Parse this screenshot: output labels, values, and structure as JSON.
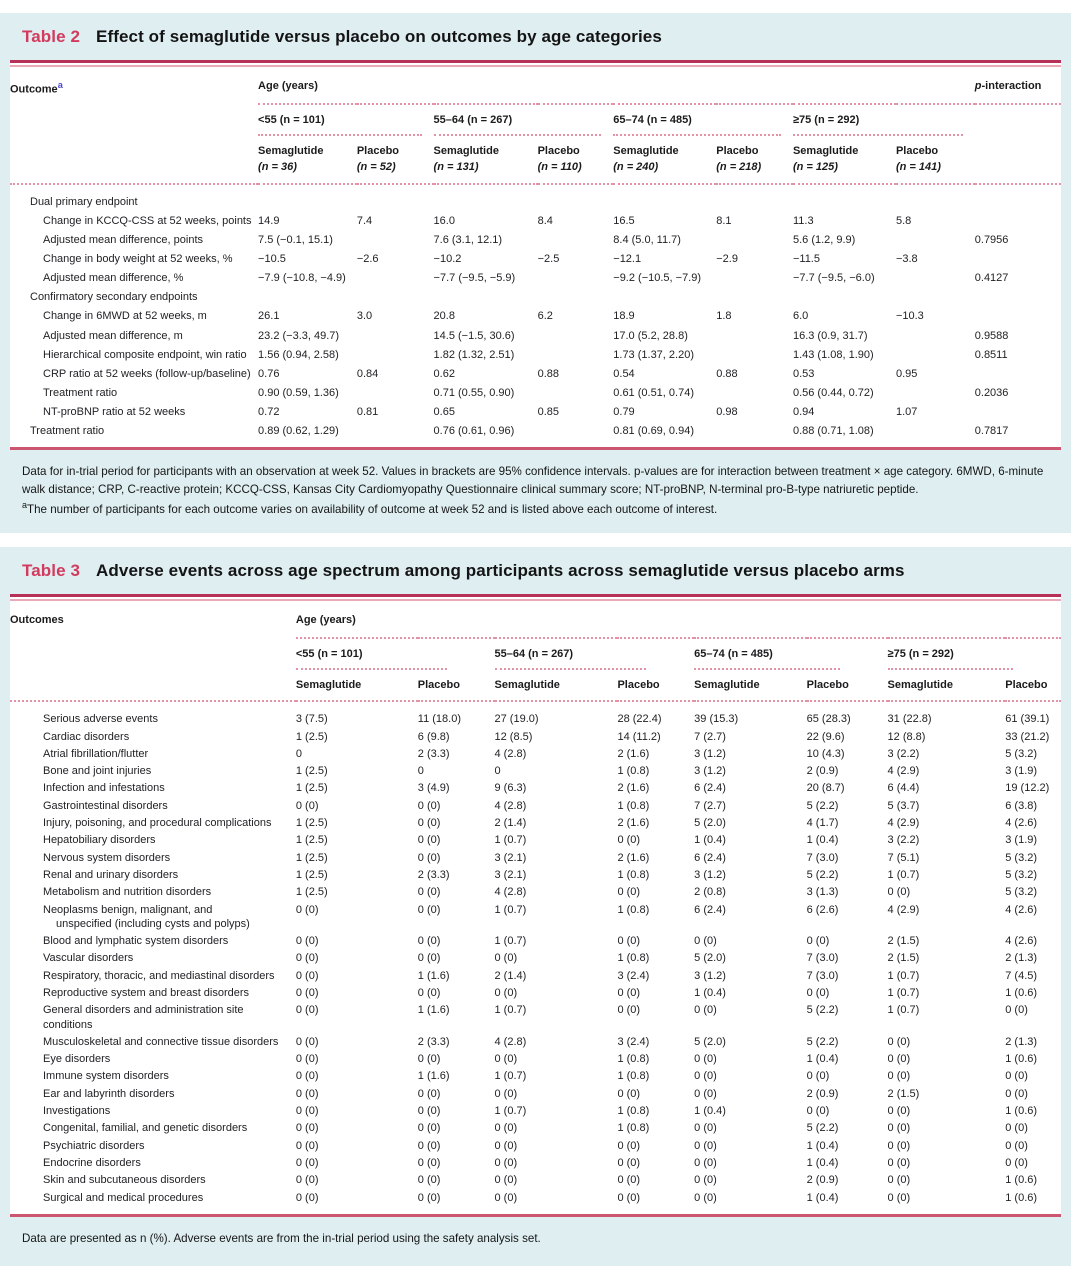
{
  "colors": {
    "panel_bg": "#dfeef1",
    "accent_red": "#d23a5e",
    "rule_dark": "#b73058",
    "rule_pink": "#eba8b6",
    "dotted_pink": "#e492a6",
    "sup_blue": "#4a44d6"
  },
  "table2": {
    "label": "Table 2",
    "title": "Effect of semaglutide versus placebo on outcomes by age categories",
    "header": {
      "outcome": "Outcome",
      "outcome_sup": "a",
      "age_years": "Age (years)",
      "p_it": "p",
      "p_rest": "-interaction",
      "groups": [
        {
          "label": "<55 (n = 101)",
          "sema": "Semaglutide",
          "sema_n": "(n = 36)",
          "placebo": "Placebo",
          "placebo_n": "(n = 52)"
        },
        {
          "label": "55–64 (n = 267)",
          "sema": "Semaglutide",
          "sema_n": "(n = 131)",
          "placebo": "Placebo",
          "placebo_n": "(n = 110)"
        },
        {
          "label": "65–74 (n = 485)",
          "sema": "Semaglutide",
          "sema_n": "(n = 240)",
          "placebo": "Placebo",
          "placebo_n": "(n = 218)"
        },
        {
          "label": "≥75 (n = 292)",
          "sema": "Semaglutide",
          "sema_n": "(n = 125)",
          "placebo": "Placebo",
          "placebo_n": "(n = 141)"
        }
      ]
    },
    "rows": [
      {
        "label": "Dual primary endpoint",
        "section": true,
        "cells": [],
        "p": ""
      },
      {
        "label": "Change in KCCQ-CSS at 52 weeks, points",
        "ind": true,
        "cells": [
          "14.9",
          "7.4",
          "16.0",
          "8.4",
          "16.5",
          "8.1",
          "11.3",
          "5.8"
        ],
        "p": ""
      },
      {
        "label": "Adjusted mean difference, points",
        "ind": true,
        "cells": [
          "7.5 (−0.1, 15.1)",
          "",
          "7.6 (3.1, 12.1)",
          "",
          "8.4 (5.0, 11.7)",
          "",
          "5.6 (1.2, 9.9)",
          ""
        ],
        "p": "0.7956"
      },
      {
        "label": "Change in body weight at 52 weeks, %",
        "ind": true,
        "cells": [
          "−10.5",
          "−2.6",
          "−10.2",
          "−2.5",
          "−12.1",
          "−2.9",
          "−11.5",
          "−3.8"
        ],
        "p": ""
      },
      {
        "label": "Adjusted mean difference, %",
        "ind": true,
        "cells": [
          "−7.9 (−10.8, −4.9)",
          "",
          "−7.7 (−9.5, −5.9)",
          "",
          "−9.2 (−10.5, −7.9)",
          "",
          "−7.7 (−9.5, −6.0)",
          ""
        ],
        "p": "0.4127"
      },
      {
        "label": "Confirmatory secondary endpoints",
        "section": true,
        "cells": [],
        "p": ""
      },
      {
        "label": "Change in 6MWD at 52 weeks, m",
        "ind": true,
        "cells": [
          "26.1",
          "3.0",
          "20.8",
          "6.2",
          "18.9",
          "1.8",
          "6.0",
          "−10.3"
        ],
        "p": ""
      },
      {
        "label": "Adjusted mean difference, m",
        "ind": true,
        "cells": [
          "23.2 (−3.3, 49.7)",
          "",
          "14.5 (−1.5, 30.6)",
          "",
          "17.0 (5.2, 28.8)",
          "",
          "16.3 (0.9, 31.7)",
          ""
        ],
        "p": "0.9588"
      },
      {
        "label": "Hierarchical composite endpoint, win ratio",
        "ind": true,
        "cells": [
          "1.56 (0.94, 2.58)",
          "",
          "1.82 (1.32, 2.51)",
          "",
          "1.73 (1.37, 2.20)",
          "",
          "1.43 (1.08, 1.90)",
          ""
        ],
        "p": "0.8511"
      },
      {
        "label": "CRP ratio at 52 weeks (follow-up/baseline)",
        "ind": true,
        "cells": [
          "0.76",
          "0.84",
          "0.62",
          "0.88",
          "0.54",
          "0.88",
          "0.53",
          "0.95"
        ],
        "p": ""
      },
      {
        "label": "Treatment ratio",
        "ind": true,
        "cells": [
          "0.90 (0.59, 1.36)",
          "",
          "0.71 (0.55, 0.90)",
          "",
          "0.61 (0.51, 0.74)",
          "",
          "0.56 (0.44, 0.72)",
          ""
        ],
        "p": "0.2036"
      },
      {
        "label": "NT-proBNP ratio at 52 weeks",
        "ind": true,
        "cells": [
          "0.72",
          "0.81",
          "0.65",
          "0.85",
          "0.79",
          "0.98",
          "0.94",
          "1.07"
        ],
        "p": ""
      },
      {
        "label": "Treatment ratio",
        "ind": false,
        "cells": [
          "0.89 (0.62, 1.29)",
          "",
          "0.76 (0.61, 0.96)",
          "",
          "0.81 (0.69, 0.94)",
          "",
          "0.88 (0.71, 1.08)",
          ""
        ],
        "p": "0.7817"
      }
    ],
    "footnote1": "Data for in-trial period for participants with an observation at week 52. Values in brackets are 95% confidence intervals. p-values are for interaction between treatment × age category. 6MWD, 6-minute walk distance; CRP, C-reactive protein; KCCQ-CSS, Kansas City Cardiomyopathy Questionnaire clinical summary score; NT-proBNP, N-terminal pro-B-type natriuretic peptide.",
    "footnote2_sup": "a",
    "footnote2": "The number of participants for each outcome varies on availability of outcome at week 52 and is listed above each outcome of interest."
  },
  "table3": {
    "label": "Table 3",
    "title": "Adverse events across age spectrum among participants across semaglutide versus placebo arms",
    "header": {
      "outcome": "Outcomes",
      "age_years": "Age (years)",
      "groups": [
        {
          "label": "<55 (n = 101)",
          "sema": "Semaglutide",
          "placebo": "Placebo"
        },
        {
          "label": "55–64 (n = 267)",
          "sema": "Semaglutide",
          "placebo": "Placebo"
        },
        {
          "label": "65–74 (n = 485)",
          "sema": "Semaglutide",
          "placebo": "Placebo"
        },
        {
          "label": "≥75 (n = 292)",
          "sema": "Semaglutide",
          "placebo": "Placebo"
        }
      ]
    },
    "rows": [
      {
        "label": "Serious adverse events",
        "ind": true,
        "cells": [
          "3 (7.5)",
          "11 (18.0)",
          "27 (19.0)",
          "28 (22.4)",
          "39 (15.3)",
          "65 (28.3)",
          "31 (22.8)",
          "61 (39.1)"
        ]
      },
      {
        "label": "Cardiac disorders",
        "ind": true,
        "cells": [
          "1 (2.5)",
          "6 (9.8)",
          "12 (8.5)",
          "14 (11.2)",
          "7 (2.7)",
          "22 (9.6)",
          "12 (8.8)",
          "33 (21.2)"
        ]
      },
      {
        "label": "Atrial fibrillation/flutter",
        "ind": true,
        "cells": [
          "0",
          "2 (3.3)",
          "4 (2.8)",
          "2 (1.6)",
          "3 (1.2)",
          "10 (4.3)",
          "3 (2.2)",
          "5 (3.2)"
        ]
      },
      {
        "label": "Bone and joint injuries",
        "ind": true,
        "cells": [
          "1 (2.5)",
          "0",
          "0",
          "1 (0.8)",
          "3 (1.2)",
          "2 (0.9)",
          "4 (2.9)",
          "3 (1.9)"
        ]
      },
      {
        "label": "Infection and infestations",
        "ind": true,
        "cells": [
          "1 (2.5)",
          "3 (4.9)",
          "9 (6.3)",
          "2 (1.6)",
          "6 (2.4)",
          "20 (8.7)",
          "6 (4.4)",
          "19 (12.2)"
        ]
      },
      {
        "label": "Gastrointestinal disorders",
        "ind": true,
        "cells": [
          "0 (0)",
          "0 (0)",
          "4 (2.8)",
          "1 (0.8)",
          "7 (2.7)",
          "5 (2.2)",
          "5 (3.7)",
          "6 (3.8)"
        ]
      },
      {
        "label": "Injury, poisoning, and procedural complications",
        "ind": true,
        "cells": [
          "1 (2.5)",
          "0 (0)",
          "2 (1.4)",
          "2 (1.6)",
          "5 (2.0)",
          "4 (1.7)",
          "4 (2.9)",
          "4 (2.6)"
        ]
      },
      {
        "label": "Hepatobiliary disorders",
        "ind": true,
        "cells": [
          "1 (2.5)",
          "0 (0)",
          "1 (0.7)",
          "0 (0)",
          "1 (0.4)",
          "1 (0.4)",
          "3 (2.2)",
          "3 (1.9)"
        ]
      },
      {
        "label": "Nervous system disorders",
        "ind": true,
        "cells": [
          "1 (2.5)",
          "0 (0)",
          "3 (2.1)",
          "2 (1.6)",
          "6 (2.4)",
          "7 (3.0)",
          "7 (5.1)",
          "5 (3.2)"
        ]
      },
      {
        "label": "Renal and urinary disorders",
        "ind": true,
        "cells": [
          "1 (2.5)",
          "2 (3.3)",
          "3 (2.1)",
          "1 (0.8)",
          "3 (1.2)",
          "5 (2.2)",
          "1 (0.7)",
          "5 (3.2)"
        ]
      },
      {
        "label": "Metabolism and nutrition disorders",
        "ind": true,
        "cells": [
          "1 (2.5)",
          "0 (0)",
          "4 (2.8)",
          "0 (0)",
          "2 (0.8)",
          "3 (1.3)",
          "0 (0)",
          "5 (3.2)"
        ]
      },
      {
        "label": "Neoplasms benign, malignant, and",
        "label2": "unspecified (including cysts and polyps)",
        "ind": true,
        "cells": [
          "0 (0)",
          "0 (0)",
          "1 (0.7)",
          "1 (0.8)",
          "6 (2.4)",
          "6 (2.6)",
          "4 (2.9)",
          "4 (2.6)"
        ]
      },
      {
        "label": "Blood and lymphatic system disorders",
        "ind": true,
        "cells": [
          "0 (0)",
          "0 (0)",
          "1 (0.7)",
          "0 (0)",
          "0 (0)",
          "0 (0)",
          "2 (1.5)",
          "4 (2.6)"
        ]
      },
      {
        "label": "Vascular disorders",
        "ind": true,
        "cells": [
          "0 (0)",
          "0 (0)",
          "0 (0)",
          "1 (0.8)",
          "5 (2.0)",
          "7 (3.0)",
          "2 (1.5)",
          "2 (1.3)"
        ]
      },
      {
        "label": "Respiratory, thoracic, and mediastinal disorders",
        "ind": true,
        "cells": [
          "0 (0)",
          "1 (1.6)",
          "2 (1.4)",
          "3 (2.4)",
          "3 (1.2)",
          "7 (3.0)",
          "1 (0.7)",
          "7 (4.5)"
        ]
      },
      {
        "label": "Reproductive system and breast disorders",
        "ind": true,
        "cells": [
          "0 (0)",
          "0 (0)",
          "0 (0)",
          "0 (0)",
          "1 (0.4)",
          "0 (0)",
          "1 (0.7)",
          "1 (0.6)"
        ]
      },
      {
        "label": "General disorders and administration site conditions",
        "ind": true,
        "cells": [
          "0 (0)",
          "1 (1.6)",
          "1 (0.7)",
          "0 (0)",
          "0 (0)",
          "5 (2.2)",
          "1 (0.7)",
          "0 (0)"
        ]
      },
      {
        "label": "Musculoskeletal and connective tissue disorders",
        "ind": true,
        "cells": [
          "0 (0)",
          "2 (3.3)",
          "4 (2.8)",
          "3 (2.4)",
          "5 (2.0)",
          "5 (2.2)",
          "0 (0)",
          "2 (1.3)"
        ]
      },
      {
        "label": "Eye disorders",
        "ind": true,
        "cells": [
          "0 (0)",
          "0 (0)",
          "0 (0)",
          "1 (0.8)",
          "0 (0)",
          "1 (0.4)",
          "0 (0)",
          "1 (0.6)"
        ]
      },
      {
        "label": "Immune system disorders",
        "ind": true,
        "cells": [
          "0 (0)",
          "1 (1.6)",
          "1 (0.7)",
          "1 (0.8)",
          "0 (0)",
          "0 (0)",
          "0 (0)",
          "0 (0)"
        ]
      },
      {
        "label": "Ear and labyrinth disorders",
        "ind": true,
        "cells": [
          "0 (0)",
          "0 (0)",
          "0 (0)",
          "0 (0)",
          "0 (0)",
          "2 (0.9)",
          "2 (1.5)",
          "0 (0)"
        ]
      },
      {
        "label": "Investigations",
        "ind": true,
        "cells": [
          "0 (0)",
          "0 (0)",
          "1 (0.7)",
          "1 (0.8)",
          "1 (0.4)",
          "0 (0)",
          "0 (0)",
          "1 (0.6)"
        ]
      },
      {
        "label": "Congenital, familial, and genetic disorders",
        "ind": true,
        "cells": [
          "0 (0)",
          "0 (0)",
          "0 (0)",
          "1 (0.8)",
          "0 (0)",
          "5 (2.2)",
          "0 (0)",
          "0 (0)"
        ]
      },
      {
        "label": "Psychiatric disorders",
        "ind": true,
        "cells": [
          "0 (0)",
          "0 (0)",
          "0 (0)",
          "0 (0)",
          "0 (0)",
          "1 (0.4)",
          "0 (0)",
          "0 (0)"
        ]
      },
      {
        "label": "Endocrine disorders",
        "ind": true,
        "cells": [
          "0 (0)",
          "0 (0)",
          "0 (0)",
          "0 (0)",
          "0 (0)",
          "1 (0.4)",
          "0 (0)",
          "0 (0)"
        ]
      },
      {
        "label": "Skin and subcutaneous disorders",
        "ind": true,
        "cells": [
          "0 (0)",
          "0 (0)",
          "0 (0)",
          "0 (0)",
          "0 (0)",
          "2 (0.9)",
          "0 (0)",
          "1 (0.6)"
        ]
      },
      {
        "label": "Surgical and medical procedures",
        "ind": true,
        "cells": [
          "0 (0)",
          "0 (0)",
          "0 (0)",
          "0 (0)",
          "0 (0)",
          "1 (0.4)",
          "0 (0)",
          "1 (0.6)"
        ]
      }
    ],
    "footnote1": "Data are presented as n (%). Adverse events are from the in-trial period using the safety analysis set."
  }
}
